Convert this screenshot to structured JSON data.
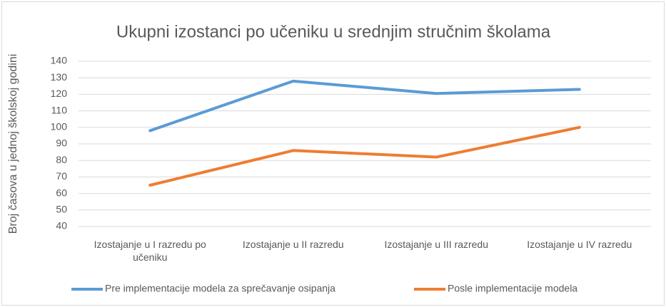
{
  "chart_data": {
    "type": "line",
    "title": "Ukupni izostanci po učeniku u srednjim stručnim školama",
    "y_label": "Broj časova u jednoj školskoj godini",
    "categories": [
      "Izostajanje u I razredu po učeniku",
      "Izostajanje u II razredu",
      "Izostajanje u III razredu",
      "Izostajanje u IV razredu"
    ],
    "series": [
      {
        "name": "Pre implementacije modela za sprečavanje osipanja",
        "color": "#5b9bd5",
        "values": [
          98,
          128,
          120.5,
          123
        ]
      },
      {
        "name": "Posle implementacije modela",
        "color": "#ed7d31",
        "values": [
          65,
          86,
          82,
          100
        ]
      }
    ],
    "ylim": [
      40,
      140
    ],
    "yticks": [
      40,
      50,
      60,
      70,
      80,
      90,
      100,
      110,
      120,
      130,
      140
    ],
    "grid": true,
    "legend": "bottom"
  }
}
